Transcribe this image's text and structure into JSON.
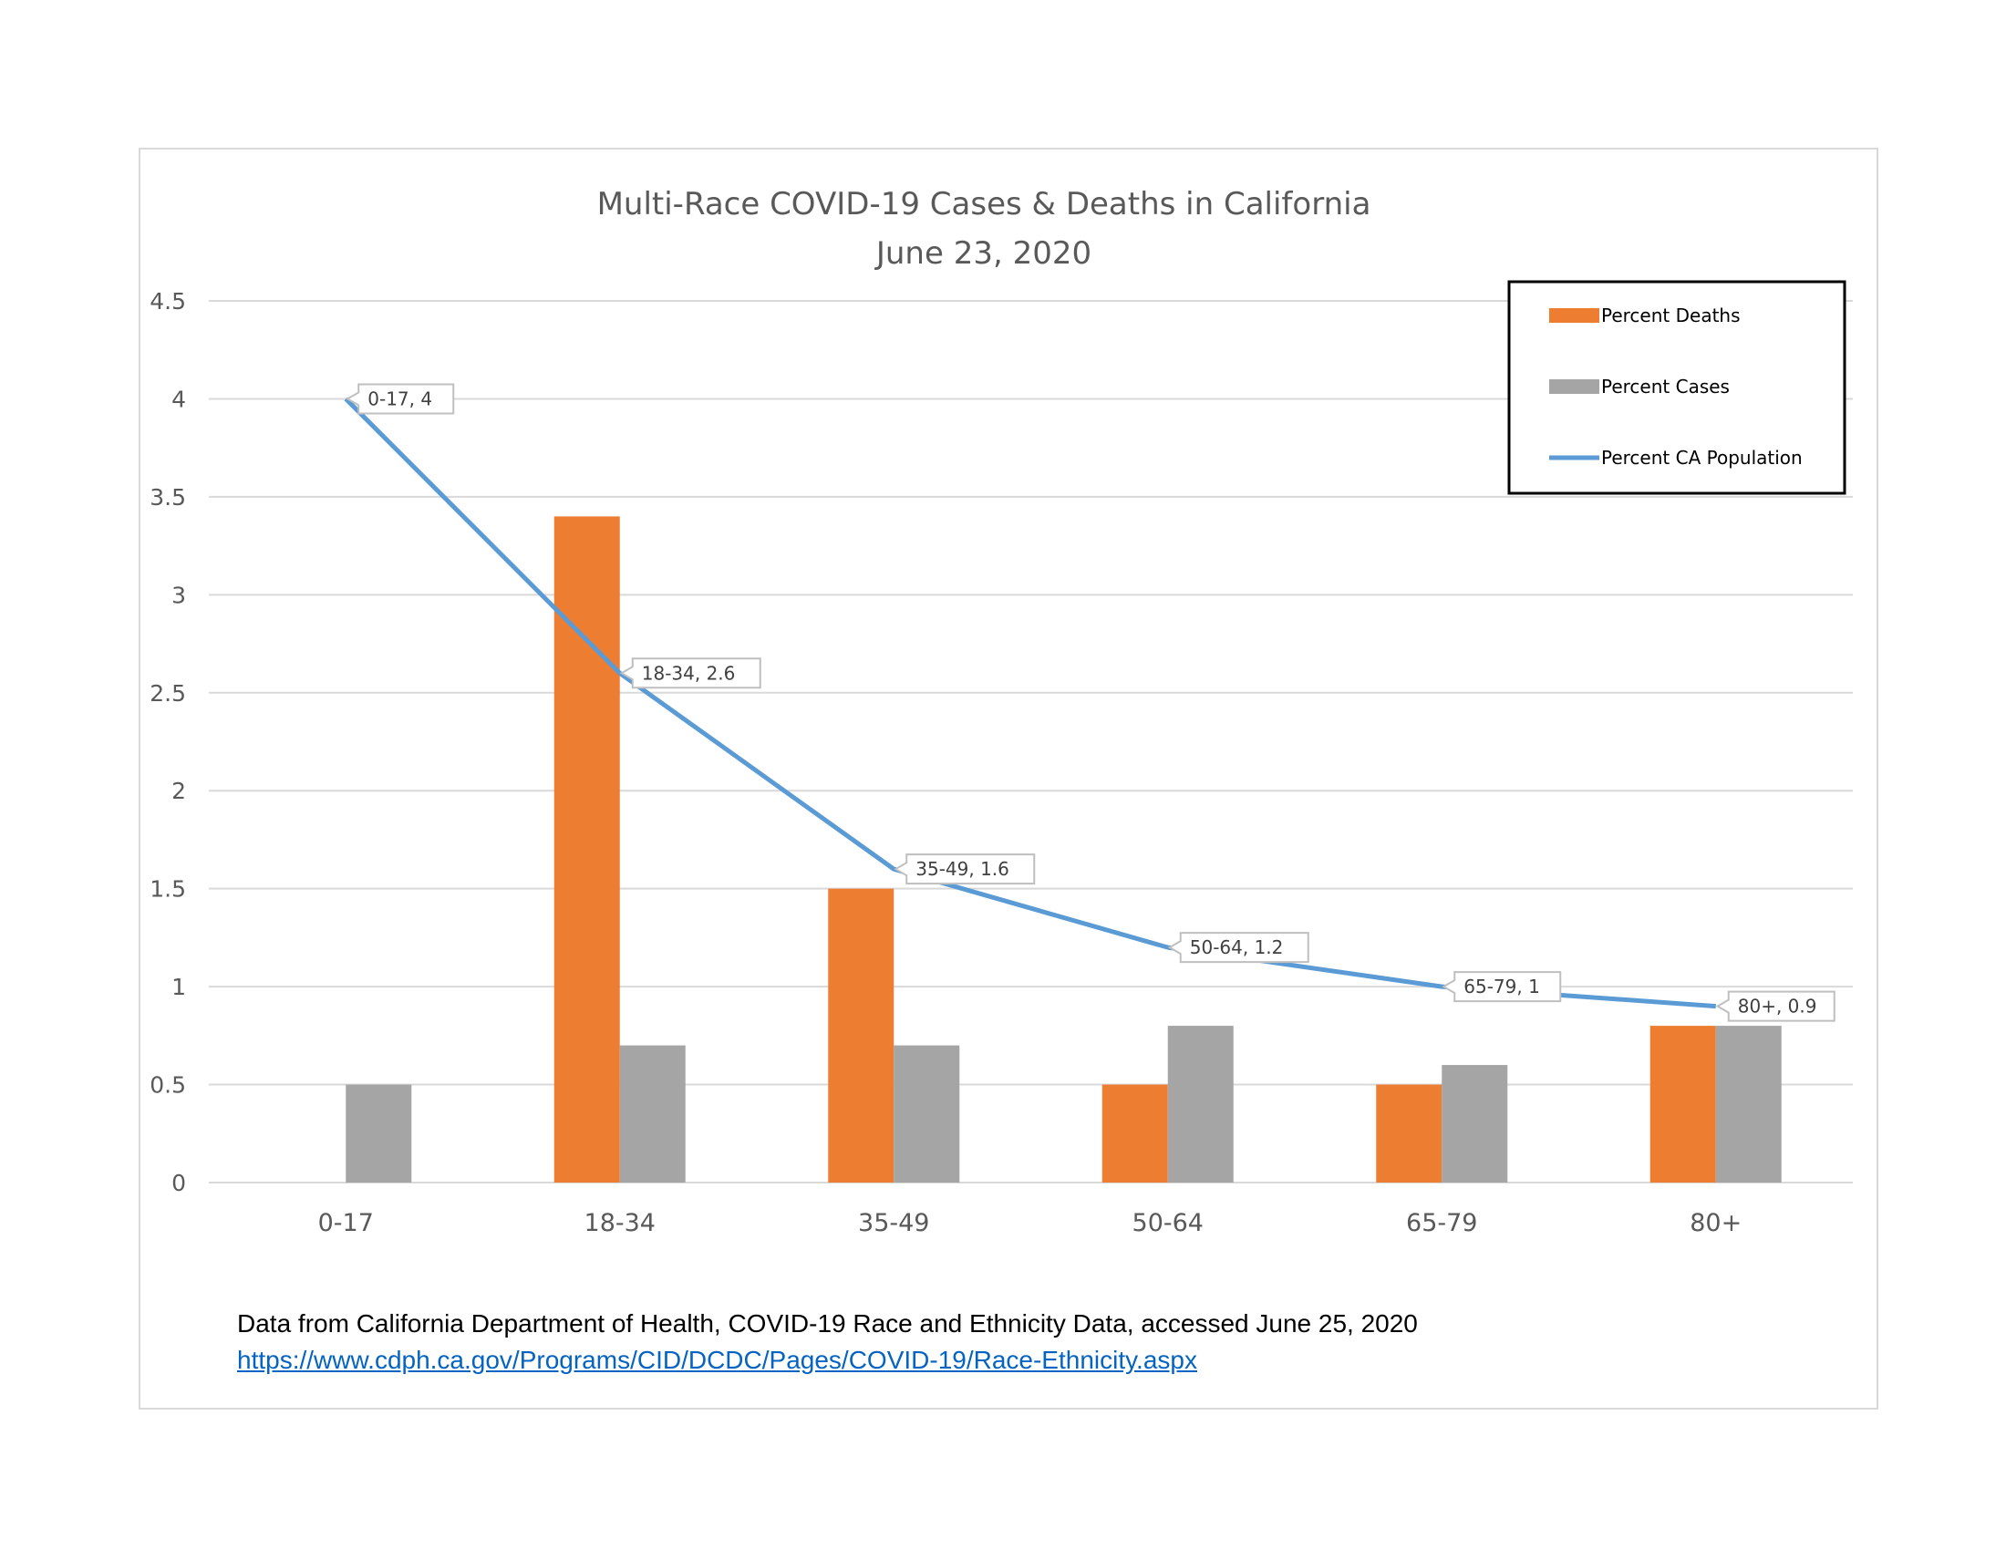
{
  "chart_data": {
    "type": "bar",
    "title": "Multi-Race COVID-19 Cases & Deaths in California",
    "subtitle": "June 23, 2020",
    "xlabel": "",
    "ylabel": "",
    "categories": [
      "0-17",
      "18-34",
      "35-49",
      "50-64",
      "65-79",
      "80+"
    ],
    "ylim": [
      0,
      4.5
    ],
    "ytick_values": [
      0,
      0.5,
      1,
      1.5,
      2,
      2.5,
      3,
      3.5,
      4,
      4.5
    ],
    "ytick_labels": [
      "0",
      "0.5",
      "1",
      "1.5",
      "2",
      "2.5",
      "3",
      "3.5",
      "4",
      "4.5"
    ],
    "grid": true,
    "legend_position": "top-right",
    "series": [
      {
        "name": "Percent Deaths",
        "type": "bar",
        "color": "#ed7d31",
        "values": [
          0,
          3.4,
          1.5,
          0.5,
          0.5,
          0.8
        ]
      },
      {
        "name": "Percent Cases",
        "type": "bar",
        "color": "#a5a5a5",
        "values": [
          0.5,
          0.7,
          0.7,
          0.8,
          0.6,
          0.8
        ]
      },
      {
        "name": "Percent CA Population",
        "type": "line",
        "color": "#5b9bd5",
        "values": [
          4,
          2.6,
          1.6,
          1.2,
          1,
          0.9
        ],
        "data_labels": [
          "0-17, 4",
          "18-34, 2.6",
          "35-49, 1.6",
          "50-64, 1.2",
          "65-79, 1",
          "80+, 0.9"
        ]
      }
    ]
  },
  "source": {
    "text": "Data from California Department of Health, COVID-19 Race and Ethnicity Data, accessed June 25, 2020",
    "link": "https://www.cdph.ca.gov/Programs/CID/DCDC/Pages/COVID-19/Race-Ethnicity.aspx"
  }
}
